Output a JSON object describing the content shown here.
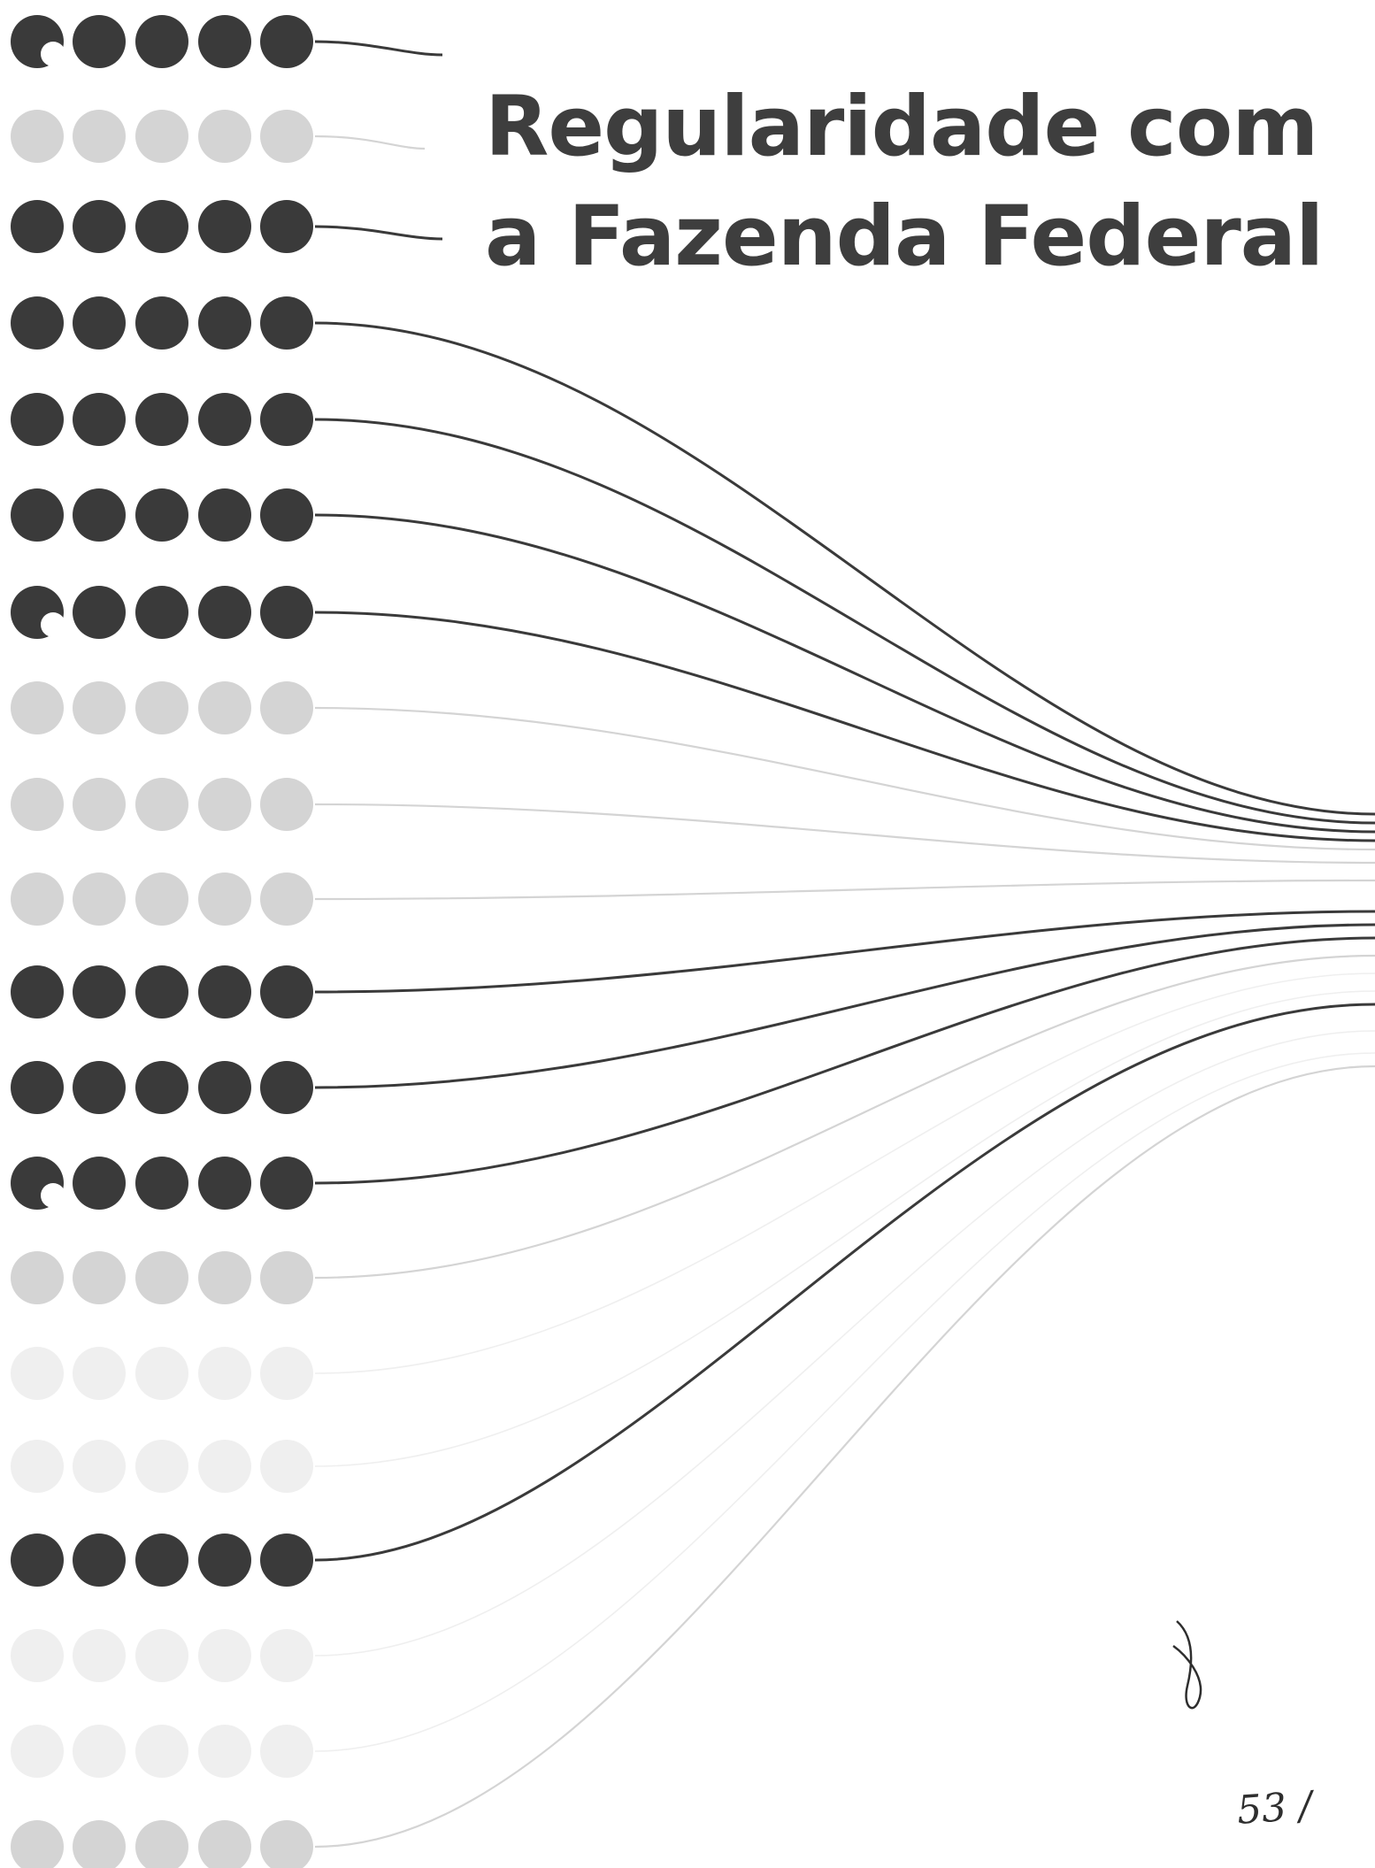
{
  "title": {
    "line1": "Regularidade com",
    "line2": "a Fazenda Federal"
  },
  "page_number": "53 /",
  "colors": {
    "dark": "#3a3a3a",
    "light": "#d4d4d4",
    "faint": "#efefef",
    "background": "#ffffff"
  },
  "rows": [
    {
      "tone": "dark"
    },
    {
      "tone": "light"
    },
    {
      "tone": "dark"
    },
    {
      "tone": "dark"
    },
    {
      "tone": "dark"
    },
    {
      "tone": "dark"
    },
    {
      "tone": "dark"
    },
    {
      "tone": "light"
    },
    {
      "tone": "light"
    },
    {
      "tone": "light"
    },
    {
      "tone": "dark"
    },
    {
      "tone": "dark"
    },
    {
      "tone": "dark"
    },
    {
      "tone": "light"
    },
    {
      "tone": "faint"
    },
    {
      "tone": "faint"
    },
    {
      "tone": "dark"
    },
    {
      "tone": "faint"
    },
    {
      "tone": "faint"
    },
    {
      "tone": "light"
    }
  ]
}
